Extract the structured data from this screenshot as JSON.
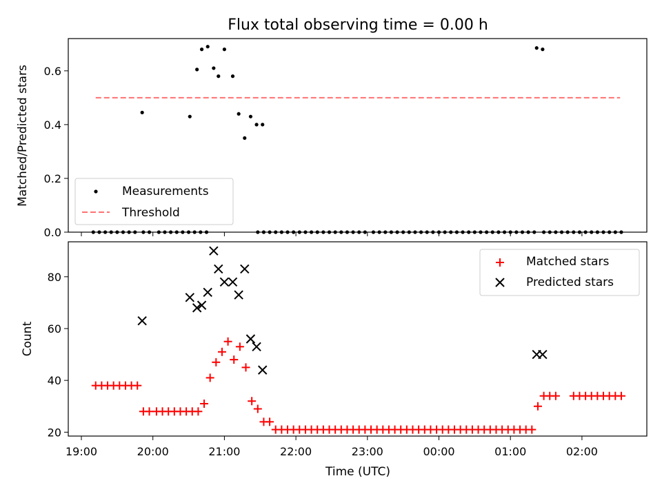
{
  "chart_data": [
    {
      "type": "scatter",
      "title": "Flux total observing time = 0.00 h",
      "ylabel": "Matched/Predicted stars",
      "xlabel": "",
      "ylim": [
        0,
        0.72
      ],
      "yticks": [
        "0.0",
        "0.2",
        "0.4",
        "0.6"
      ],
      "legend_position": "lower-left",
      "grid": false,
      "series": [
        {
          "name": "Measurements",
          "kind": "dot",
          "color": "#000000",
          "x": [
            "19:10",
            "19:15",
            "19:20",
            "19:25",
            "19:30",
            "19:35",
            "19:40",
            "19:45",
            "19:52",
            "19:57",
            "20:05",
            "20:10",
            "20:15",
            "20:20",
            "20:25",
            "20:30",
            "20:35",
            "20:40",
            "20:45",
            "21:28",
            "21:33",
            "21:38",
            "21:43",
            "21:48",
            "21:53",
            "21:58",
            "22:03",
            "22:08",
            "22:13",
            "22:18",
            "22:23",
            "22:28",
            "22:33",
            "22:38",
            "22:43",
            "22:48",
            "22:53",
            "22:58",
            "23:05",
            "23:10",
            "23:15",
            "23:20",
            "23:25",
            "23:30",
            "23:35",
            "23:40",
            "23:45",
            "23:50",
            "23:55",
            "00:00",
            "00:05",
            "00:10",
            "00:15",
            "00:20",
            "00:25",
            "00:30",
            "00:35",
            "00:40",
            "00:45",
            "00:50",
            "00:55",
            "01:00",
            "01:05",
            "01:10",
            "01:15",
            "01:20",
            "01:28",
            "01:33",
            "01:38",
            "01:43",
            "01:48",
            "01:53",
            "01:58",
            "02:03",
            "02:08",
            "02:13",
            "02:18",
            "02:23",
            "02:28",
            "02:33",
            "19:51",
            "20:31",
            "20:37",
            "20:41",
            "20:46",
            "20:51",
            "20:55",
            "21:00",
            "21:07",
            "21:12",
            "21:17",
            "21:22",
            "21:27",
            "21:32",
            "01:22",
            "01:27"
          ],
          "y": [
            0,
            0,
            0,
            0,
            0,
            0,
            0,
            0,
            0,
            0,
            0,
            0,
            0,
            0,
            0,
            0,
            0,
            0,
            0,
            0,
            0,
            0,
            0,
            0,
            0,
            0,
            0,
            0,
            0,
            0,
            0,
            0,
            0,
            0,
            0,
            0,
            0,
            0,
            0,
            0,
            0,
            0,
            0,
            0,
            0,
            0,
            0,
            0,
            0,
            0,
            0,
            0,
            0,
            0,
            0,
            0,
            0,
            0,
            0,
            0,
            0,
            0,
            0,
            0,
            0,
            0,
            0,
            0,
            0,
            0,
            0,
            0,
            0,
            0,
            0,
            0,
            0,
            0,
            0,
            0,
            0.445,
            0.43,
            0.605,
            0.68,
            0.69,
            0.61,
            0.58,
            0.68,
            0.58,
            0.44,
            0.35,
            0.43,
            0.4,
            0.4,
            0.685,
            0.68
          ]
        },
        {
          "name": "Threshold",
          "kind": "dashed-line",
          "color": "#ff7070",
          "x": [
            "19:12",
            "02:32"
          ],
          "y": [
            0.5,
            0.5
          ]
        }
      ]
    },
    {
      "type": "scatter",
      "title": "",
      "xlabel": "Time (UTC)",
      "ylabel": "Count",
      "ylim": [
        18.5,
        93.5
      ],
      "yticks": [
        "20",
        "40",
        "60",
        "80"
      ],
      "xticks": [
        "19:00",
        "20:00",
        "21:00",
        "22:00",
        "23:00",
        "00:00",
        "01:00",
        "02:00"
      ],
      "legend_position": "upper-right",
      "grid": false,
      "series": [
        {
          "name": "Matched stars",
          "kind": "plus",
          "color": "#ff0000",
          "x": [
            "19:12",
            "19:17",
            "19:22",
            "19:27",
            "19:32",
            "19:37",
            "19:42",
            "19:47",
            "19:52",
            "19:57",
            "20:03",
            "20:08",
            "20:13",
            "20:18",
            "20:23",
            "20:28",
            "20:33",
            "20:38",
            "20:43",
            "20:48",
            "20:53",
            "20:58",
            "21:03",
            "21:08",
            "21:13",
            "21:18",
            "21:23",
            "21:28",
            "21:33",
            "21:38",
            "21:43",
            "21:48",
            "21:53",
            "21:58",
            "22:03",
            "22:08",
            "22:13",
            "22:18",
            "22:23",
            "22:28",
            "22:33",
            "22:38",
            "22:43",
            "22:48",
            "22:53",
            "22:58",
            "23:03",
            "23:08",
            "23:13",
            "23:18",
            "23:23",
            "23:28",
            "23:33",
            "23:38",
            "23:43",
            "23:48",
            "23:53",
            "23:58",
            "00:03",
            "00:08",
            "00:13",
            "00:18",
            "00:23",
            "00:28",
            "00:33",
            "00:38",
            "00:43",
            "00:48",
            "00:53",
            "00:58",
            "01:03",
            "01:08",
            "01:13",
            "01:18",
            "01:23",
            "01:28",
            "01:33",
            "01:38",
            "01:53",
            "01:58",
            "02:03",
            "02:08",
            "02:13",
            "02:18",
            "02:23",
            "02:28",
            "02:33"
          ],
          "y": [
            38,
            38,
            38,
            38,
            38,
            38,
            38,
            38,
            28,
            28,
            28,
            28,
            28,
            28,
            28,
            28,
            28,
            28,
            31,
            41,
            47,
            51,
            55,
            48,
            53,
            45,
            32,
            29,
            24,
            24,
            21,
            21,
            21,
            21,
            21,
            21,
            21,
            21,
            21,
            21,
            21,
            21,
            21,
            21,
            21,
            21,
            21,
            21,
            21,
            21,
            21,
            21,
            21,
            21,
            21,
            21,
            21,
            21,
            21,
            21,
            21,
            21,
            21,
            21,
            21,
            21,
            21,
            21,
            21,
            21,
            21,
            21,
            21,
            21,
            30,
            34,
            34,
            34,
            34,
            34,
            34,
            34,
            34,
            34,
            34,
            34,
            34
          ]
        },
        {
          "name": "Predicted stars",
          "kind": "x",
          "color": "#000000",
          "x": [
            "19:51",
            "20:31",
            "20:37",
            "20:41",
            "20:46",
            "20:51",
            "20:55",
            "21:00",
            "21:07",
            "21:12",
            "21:17",
            "21:22",
            "21:27",
            "21:32",
            "01:22",
            "01:27"
          ],
          "y": [
            63,
            72,
            68,
            69,
            74,
            90,
            83,
            78,
            78,
            73,
            83,
            56,
            53,
            44,
            50,
            50
          ]
        }
      ]
    }
  ]
}
